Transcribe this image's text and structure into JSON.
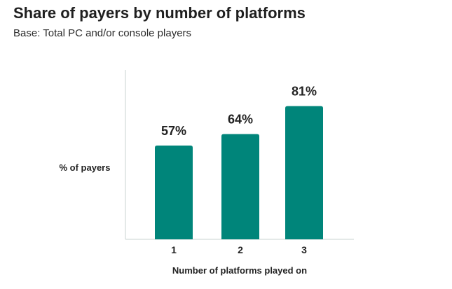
{
  "header": {
    "title": "Share of payers by number of platforms",
    "subtitle": "Base: Total PC and/or console players"
  },
  "colors": {
    "bar": "#00857a",
    "axis": "#c9d3d1"
  },
  "chart_data": {
    "type": "bar",
    "title": "Share of payers by number of platforms",
    "subtitle": "Base: Total PC and/or console players",
    "categories": [
      "1",
      "2",
      "3"
    ],
    "values": [
      57,
      64,
      81
    ],
    "data_labels": [
      "57%",
      "64%",
      "81%"
    ],
    "xlabel": "Number of platforms played on",
    "ylabel": "% of payers",
    "ylim": [
      0,
      100
    ],
    "grid": false,
    "legend": "none"
  }
}
